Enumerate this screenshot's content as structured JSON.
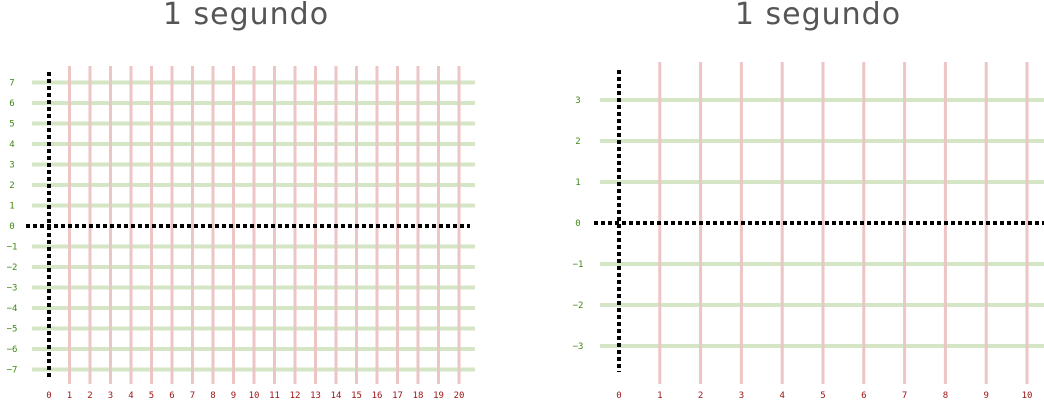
{
  "colors": {
    "horizontal_lines": "#d5e6c6",
    "vertical_lines": "#ecc5c5",
    "y_labels": "#3d8a12",
    "x_labels": "#9b1111",
    "axes": "#000000",
    "title": "#555555"
  },
  "panels": [
    {
      "title": "1 segundo",
      "x_ticks": [
        0,
        1,
        2,
        3,
        4,
        5,
        6,
        7,
        8,
        9,
        10,
        11,
        12,
        13,
        14,
        15,
        16,
        17,
        18,
        19,
        20
      ],
      "y_ticks": [
        7,
        6,
        5,
        4,
        3,
        2,
        1,
        0,
        -1,
        -2,
        -3,
        -4,
        -5,
        -6,
        -7
      ],
      "y_tick_labels": [
        "7",
        "6",
        "5",
        "4",
        "3",
        "2",
        "1",
        "0",
        "−1",
        "−2",
        "−3",
        "−4",
        "−5",
        "−6",
        "−7"
      ]
    },
    {
      "title": "1 segundo",
      "x_ticks": [
        0,
        1,
        2,
        3,
        4,
        5,
        6,
        7,
        8,
        9,
        10
      ],
      "y_ticks": [
        3,
        2,
        1,
        0,
        -1,
        -2,
        -3
      ],
      "y_tick_labels": [
        "3",
        "2",
        "1",
        "0",
        "−1",
        "−2",
        "−3"
      ]
    }
  ]
}
